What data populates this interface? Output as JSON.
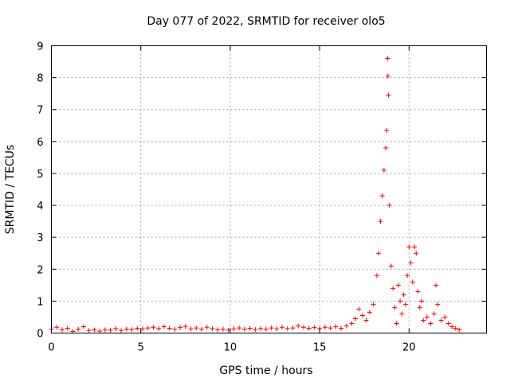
{
  "chart_data": {
    "type": "scatter",
    "title": "Day 077 of 2022, SRMTID for receiver olo5",
    "xlabel": "GPS time / hours",
    "ylabel": "SRMTID / TECUs",
    "xlim": [
      0,
      24.33
    ],
    "ylim": [
      0,
      9
    ],
    "xticks": [
      "0",
      "5",
      "10",
      "15",
      "20"
    ],
    "xtick_values": [
      0,
      5,
      10,
      15,
      20
    ],
    "yticks": [
      "0",
      "1",
      "2",
      "3",
      "4",
      "5",
      "6",
      "7",
      "8",
      "9"
    ],
    "ytick_values": [
      0,
      1,
      2,
      3,
      4,
      5,
      6,
      7,
      8,
      9
    ],
    "grid": true,
    "marker": "+",
    "series": [
      {
        "name": "SRMTID",
        "color": "#ff0000",
        "points": [
          [
            0.0,
            0.12
          ],
          [
            0.3,
            0.18
          ],
          [
            0.6,
            0.1
          ],
          [
            0.9,
            0.15
          ],
          [
            1.2,
            0.05
          ],
          [
            1.5,
            0.12
          ],
          [
            1.8,
            0.2
          ],
          [
            2.1,
            0.08
          ],
          [
            2.4,
            0.1
          ],
          [
            2.7,
            0.06
          ],
          [
            3.0,
            0.1
          ],
          [
            3.3,
            0.09
          ],
          [
            3.6,
            0.14
          ],
          [
            3.9,
            0.08
          ],
          [
            4.2,
            0.12
          ],
          [
            4.5,
            0.11
          ],
          [
            4.8,
            0.15
          ],
          [
            5.1,
            0.13
          ],
          [
            5.4,
            0.16
          ],
          [
            5.7,
            0.18
          ],
          [
            6.0,
            0.14
          ],
          [
            6.3,
            0.2
          ],
          [
            6.6,
            0.15
          ],
          [
            6.9,
            0.12
          ],
          [
            7.2,
            0.17
          ],
          [
            7.5,
            0.21
          ],
          [
            7.8,
            0.13
          ],
          [
            8.1,
            0.16
          ],
          [
            8.4,
            0.12
          ],
          [
            8.7,
            0.18
          ],
          [
            9.0,
            0.14
          ],
          [
            9.3,
            0.1
          ],
          [
            9.6,
            0.12
          ],
          [
            9.9,
            0.09
          ],
          [
            10.2,
            0.13
          ],
          [
            10.5,
            0.16
          ],
          [
            10.8,
            0.12
          ],
          [
            11.1,
            0.15
          ],
          [
            11.4,
            0.11
          ],
          [
            11.7,
            0.14
          ],
          [
            12.0,
            0.12
          ],
          [
            12.3,
            0.16
          ],
          [
            12.6,
            0.13
          ],
          [
            12.9,
            0.18
          ],
          [
            13.2,
            0.14
          ],
          [
            13.5,
            0.16
          ],
          [
            13.8,
            0.22
          ],
          [
            14.1,
            0.18
          ],
          [
            14.4,
            0.15
          ],
          [
            14.7,
            0.17
          ],
          [
            15.0,
            0.14
          ],
          [
            15.3,
            0.18
          ],
          [
            15.6,
            0.16
          ],
          [
            15.9,
            0.2
          ],
          [
            16.2,
            0.15
          ],
          [
            16.5,
            0.22
          ],
          [
            16.8,
            0.3
          ],
          [
            17.0,
            0.45
          ],
          [
            17.2,
            0.75
          ],
          [
            17.4,
            0.55
          ],
          [
            17.6,
            0.4
          ],
          [
            17.8,
            0.65
          ],
          [
            18.0,
            0.9
          ],
          [
            18.2,
            1.8
          ],
          [
            18.3,
            2.5
          ],
          [
            18.4,
            3.5
          ],
          [
            18.5,
            4.3
          ],
          [
            18.6,
            5.1
          ],
          [
            18.7,
            5.8
          ],
          [
            18.75,
            6.35
          ],
          [
            18.8,
            8.6
          ],
          [
            18.82,
            8.05
          ],
          [
            18.85,
            7.45
          ],
          [
            18.9,
            4.0
          ],
          [
            19.0,
            2.1
          ],
          [
            19.1,
            1.4
          ],
          [
            19.2,
            0.8
          ],
          [
            19.3,
            0.3
          ],
          [
            19.4,
            1.5
          ],
          [
            19.5,
            1.0
          ],
          [
            19.6,
            0.6
          ],
          [
            19.7,
            1.2
          ],
          [
            19.8,
            0.9
          ],
          [
            19.9,
            1.8
          ],
          [
            20.0,
            2.7
          ],
          [
            20.1,
            2.2
          ],
          [
            20.2,
            1.6
          ],
          [
            20.3,
            2.7
          ],
          [
            20.4,
            2.5
          ],
          [
            20.5,
            1.3
          ],
          [
            20.6,
            0.8
          ],
          [
            20.7,
            1.0
          ],
          [
            20.8,
            0.4
          ],
          [
            21.0,
            0.5
          ],
          [
            21.2,
            0.3
          ],
          [
            21.4,
            0.6
          ],
          [
            21.5,
            1.5
          ],
          [
            21.6,
            0.9
          ],
          [
            21.8,
            0.4
          ],
          [
            22.0,
            0.5
          ],
          [
            22.2,
            0.3
          ],
          [
            22.4,
            0.2
          ],
          [
            22.6,
            0.15
          ],
          [
            22.8,
            0.1
          ]
        ]
      }
    ]
  }
}
